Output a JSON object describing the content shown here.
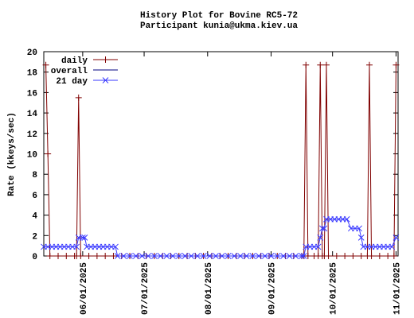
{
  "chart_data": {
    "type": "line",
    "title": "History Plot for Bovine RC5-72",
    "subtitle": "Participant kunia@ukma.kiev.ua",
    "y_label": "Rate (kkeys/sec)",
    "xlim": [
      "2025-05-13",
      "2025-11-02"
    ],
    "xticks": [
      {
        "value": "2025-06-01",
        "label": "06/01/2025"
      },
      {
        "value": "2025-07-01",
        "label": "07/01/2025"
      },
      {
        "value": "2025-08-01",
        "label": "08/01/2025"
      },
      {
        "value": "2025-09-01",
        "label": "09/01/2025"
      },
      {
        "value": "2025-10-01",
        "label": "10/01/2025"
      },
      {
        "value": "2025-11-01",
        "label": "11/01/2025"
      }
    ],
    "ylim": [
      0,
      20
    ],
    "yticks": [
      0,
      2,
      4,
      6,
      8,
      10,
      12,
      14,
      16,
      18,
      20
    ],
    "legend": "top-left",
    "series": [
      {
        "name": "daily",
        "color": "#800000",
        "marker": "plus",
        "x": [
          "2025-05-14",
          "2025-05-15",
          "2025-05-16",
          "2025-05-20",
          "2025-05-24",
          "2025-05-28",
          "2025-05-29",
          "2025-05-30",
          "2025-05-31",
          "2025-06-04",
          "2025-06-08",
          "2025-06-12",
          "2025-06-16",
          "2025-06-20",
          "2025-06-24",
          "2025-06-28",
          "2025-07-02",
          "2025-07-06",
          "2025-07-10",
          "2025-07-14",
          "2025-07-18",
          "2025-07-22",
          "2025-07-26",
          "2025-07-30",
          "2025-08-03",
          "2025-08-07",
          "2025-08-11",
          "2025-08-15",
          "2025-08-19",
          "2025-08-23",
          "2025-08-27",
          "2025-08-31",
          "2025-09-04",
          "2025-09-08",
          "2025-09-12",
          "2025-09-16",
          "2025-09-17",
          "2025-09-18",
          "2025-09-19",
          "2025-09-22",
          "2025-09-24",
          "2025-09-25",
          "2025-09-26",
          "2025-09-27",
          "2025-09-28",
          "2025-09-29",
          "2025-10-03",
          "2025-10-07",
          "2025-10-11",
          "2025-10-15",
          "2025-10-18",
          "2025-10-19",
          "2025-10-20",
          "2025-10-24",
          "2025-10-28",
          "2025-10-31",
          "2025-11-01"
        ],
        "values": [
          18.7,
          10.0,
          0,
          0,
          0,
          0,
          0,
          15.5,
          0,
          0,
          0,
          0,
          0,
          0,
          0,
          0,
          0,
          0,
          0,
          0,
          0,
          0,
          0,
          0,
          0,
          0,
          0,
          0,
          0,
          0,
          0,
          0,
          0,
          0,
          0,
          0,
          0,
          18.7,
          0,
          0,
          0,
          18.7,
          0,
          0,
          18.7,
          0,
          0,
          0,
          0,
          0,
          0,
          18.7,
          0,
          0,
          0,
          0,
          18.7
        ]
      },
      {
        "name": "overall",
        "color": "#000080",
        "marker": "none",
        "x": [],
        "values": []
      },
      {
        "name": "21 day",
        "color": "#3a3aff",
        "marker": "cross",
        "x": [
          "2025-05-13",
          "2025-05-15",
          "2025-05-17",
          "2025-05-19",
          "2025-05-21",
          "2025-05-23",
          "2025-05-25",
          "2025-05-27",
          "2025-05-29",
          "2025-05-30",
          "2025-06-01",
          "2025-06-02",
          "2025-06-03",
          "2025-06-05",
          "2025-06-07",
          "2025-06-09",
          "2025-06-11",
          "2025-06-13",
          "2025-06-15",
          "2025-06-17",
          "2025-06-18",
          "2025-06-21",
          "2025-06-24",
          "2025-06-27",
          "2025-06-30",
          "2025-07-03",
          "2025-07-06",
          "2025-07-09",
          "2025-07-12",
          "2025-07-15",
          "2025-07-18",
          "2025-07-21",
          "2025-07-24",
          "2025-07-27",
          "2025-07-30",
          "2025-08-02",
          "2025-08-05",
          "2025-08-08",
          "2025-08-11",
          "2025-08-14",
          "2025-08-17",
          "2025-08-20",
          "2025-08-23",
          "2025-08-26",
          "2025-08-29",
          "2025-09-01",
          "2025-09-04",
          "2025-09-07",
          "2025-09-10",
          "2025-09-13",
          "2025-09-16",
          "2025-09-17",
          "2025-09-18",
          "2025-09-20",
          "2025-09-22",
          "2025-09-24",
          "2025-09-25",
          "2025-09-26",
          "2025-09-27",
          "2025-09-28",
          "2025-09-30",
          "2025-10-02",
          "2025-10-04",
          "2025-10-06",
          "2025-10-08",
          "2025-10-10",
          "2025-10-12",
          "2025-10-14",
          "2025-10-15",
          "2025-10-16",
          "2025-10-18",
          "2025-10-20",
          "2025-10-22",
          "2025-10-24",
          "2025-10-26",
          "2025-10-28",
          "2025-10-30",
          "2025-11-01"
        ],
        "values": [
          0.9,
          0.9,
          0.9,
          0.9,
          0.9,
          0.9,
          0.9,
          0.9,
          0.9,
          1.8,
          1.8,
          1.8,
          0.9,
          0.9,
          0.9,
          0.9,
          0.9,
          0.9,
          0.9,
          0.9,
          0,
          0,
          0,
          0,
          0,
          0,
          0,
          0,
          0,
          0,
          0,
          0,
          0,
          0,
          0,
          0,
          0,
          0,
          0,
          0,
          0,
          0,
          0,
          0,
          0,
          0,
          0,
          0,
          0,
          0,
          0,
          0,
          0.9,
          0.9,
          0.9,
          0.9,
          1.8,
          2.7,
          2.7,
          3.6,
          3.6,
          3.6,
          3.6,
          3.6,
          3.6,
          2.7,
          2.7,
          2.7,
          1.8,
          0.9,
          0.9,
          0.9,
          0.9,
          0.9,
          0.9,
          0.9,
          0.9,
          1.8
        ]
      }
    ]
  }
}
